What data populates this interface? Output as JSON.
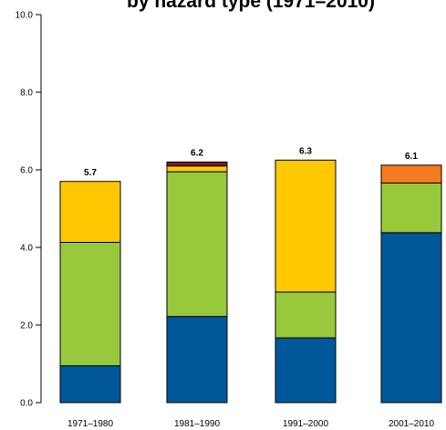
{
  "chart_data": {
    "type": "bar",
    "stacked": true,
    "title": "by hazard type (1971–2010)",
    "categories": [
      "1971–1980",
      "1981–1990",
      "1991–2000",
      "2001–2010"
    ],
    "totals": [
      "5.7",
      "6.2",
      "6.3",
      "6.1"
    ],
    "ylim": [
      0,
      10
    ],
    "y_ticks": [
      0,
      2,
      4,
      6,
      8,
      10
    ],
    "y_tick_labels": [
      "0.0",
      "2.0",
      "4.0",
      "6.0",
      "8.0",
      "10.0"
    ],
    "grid": false,
    "series": [
      {
        "color": "#00589a",
        "values": [
          0.95,
          2.22,
          1.67,
          4.38
        ]
      },
      {
        "color": "#98c93c",
        "values": [
          3.18,
          3.73,
          1.18,
          1.28
        ]
      },
      {
        "color": "#ffc800",
        "values": [
          1.57,
          0.15,
          3.4,
          0.0
        ]
      },
      {
        "color": "#f47b20",
        "values": [
          0.0,
          0.0,
          0.0,
          0.46
        ]
      },
      {
        "color": "#7a1a3a",
        "values": [
          0.0,
          0.1,
          0.0,
          0.0
        ]
      }
    ]
  }
}
